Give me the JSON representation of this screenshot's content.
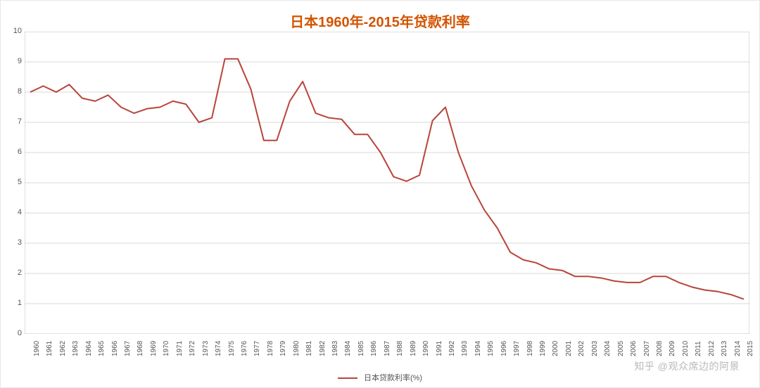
{
  "chart": {
    "type": "line",
    "title": "日本1960年-2015年贷款利率",
    "title_color": "#d35400",
    "title_fontsize": 20,
    "background_color": "#ffffff",
    "plot_border_color": "#bfbfbf",
    "grid_color": "#d9d9d9",
    "axis_label_color": "#555555",
    "axis_label_fontsize": 11,
    "xlabel_fontsize": 10,
    "line_color": "#b9443a",
    "line_width": 2,
    "ylim": [
      0,
      10
    ],
    "ytick_step": 1,
    "yticks": [
      0,
      1,
      2,
      3,
      4,
      5,
      6,
      7,
      8,
      9,
      10
    ],
    "series_name": "日本贷款利率(%)",
    "x": [
      "1960",
      "1961",
      "1962",
      "1963",
      "1964",
      "1965",
      "1966",
      "1967",
      "1968",
      "1969",
      "1970",
      "1971",
      "1972",
      "1973",
      "1974",
      "1975",
      "1976",
      "1977",
      "1978",
      "1979",
      "1980",
      "1981",
      "1982",
      "1983",
      "1984",
      "1985",
      "1986",
      "1987",
      "1988",
      "1989",
      "1990",
      "1991",
      "1992",
      "1993",
      "1994",
      "1995",
      "1996",
      "1997",
      "1998",
      "1999",
      "2000",
      "2001",
      "2002",
      "2003",
      "2004",
      "2005",
      "2006",
      "2007",
      "2008",
      "2009",
      "2010",
      "2011",
      "2012",
      "2013",
      "2014",
      "2015"
    ],
    "y": [
      8.0,
      8.2,
      8.0,
      8.25,
      7.8,
      7.7,
      7.9,
      7.5,
      7.3,
      7.45,
      7.5,
      7.7,
      7.6,
      7.0,
      7.15,
      9.1,
      9.1,
      8.1,
      6.4,
      6.4,
      7.7,
      8.35,
      7.3,
      7.15,
      7.1,
      6.6,
      6.6,
      6.0,
      5.2,
      5.05,
      5.25,
      7.05,
      7.5,
      6.0,
      4.9,
      4.1,
      3.5,
      2.7,
      2.45,
      2.35,
      2.15,
      2.1,
      1.9,
      1.9,
      1.85,
      1.75,
      1.7,
      1.7,
      1.9,
      1.9,
      1.7,
      1.55,
      1.45,
      1.4,
      1.3,
      1.15
    ]
  },
  "legend": {
    "label": "日本贷款利率(%)"
  },
  "watermark": "知乎 @观众席边的阿景"
}
